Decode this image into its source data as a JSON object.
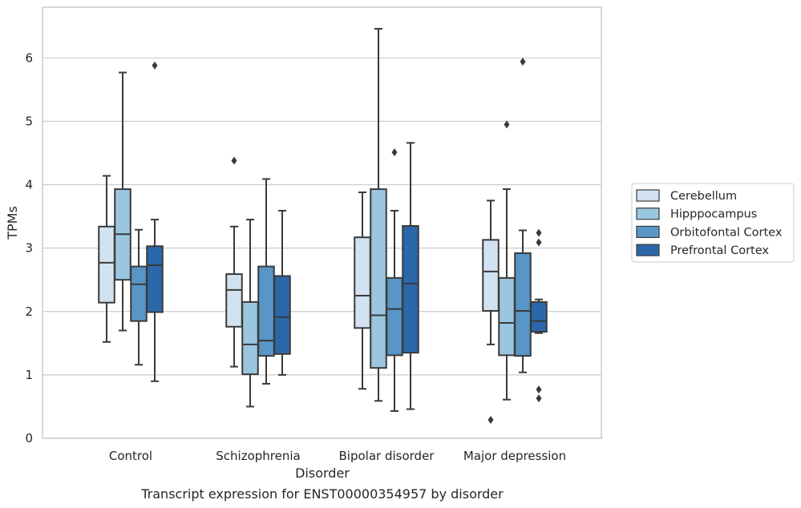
{
  "chart_data": {
    "type": "box",
    "title": "Transcript expression for ENST00000354957 by disorder",
    "xlabel": "Disorder",
    "ylabel": "TPMs",
    "ylim": [
      0,
      6.8
    ],
    "yticks": [
      0,
      1,
      2,
      3,
      4,
      5,
      6
    ],
    "grid": "horizontal",
    "legend_position": "outside-right",
    "categories": [
      "Control",
      "Schizophrenia",
      "Bipolar disorder",
      "Major depression"
    ],
    "series": [
      {
        "name": "Cerebellum",
        "color": "#d2e2f1",
        "boxes": [
          {
            "whisker_low": 1.52,
            "q1": 2.14,
            "median": 2.77,
            "q3": 3.34,
            "whisker_high": 4.14,
            "outliers": []
          },
          {
            "whisker_low": 1.13,
            "q1": 1.76,
            "median": 2.34,
            "q3": 2.59,
            "whisker_high": 3.34,
            "outliers": [
              4.38
            ]
          },
          {
            "whisker_low": 0.78,
            "q1": 1.74,
            "median": 2.25,
            "q3": 3.17,
            "whisker_high": 3.88,
            "outliers": []
          },
          {
            "whisker_low": 1.48,
            "q1": 2.01,
            "median": 2.63,
            "q3": 3.13,
            "whisker_high": 3.75,
            "outliers": [
              0.29
            ]
          }
        ]
      },
      {
        "name": "Hipppocampus",
        "color": "#9ac6e0",
        "boxes": [
          {
            "whisker_low": 1.7,
            "q1": 2.5,
            "median": 3.22,
            "q3": 3.93,
            "whisker_high": 5.77,
            "outliers": []
          },
          {
            "whisker_low": 0.5,
            "q1": 1.01,
            "median": 1.48,
            "q3": 2.15,
            "whisker_high": 3.45,
            "outliers": []
          },
          {
            "whisker_low": 0.59,
            "q1": 1.11,
            "median": 1.94,
            "q3": 3.93,
            "whisker_high": 6.46,
            "outliers": []
          },
          {
            "whisker_low": 0.61,
            "q1": 1.31,
            "median": 1.82,
            "q3": 2.53,
            "whisker_high": 3.93,
            "outliers": [
              4.95
            ]
          }
        ]
      },
      {
        "name": "Orbitofontal Cortex",
        "color": "#5796c7",
        "boxes": [
          {
            "whisker_low": 1.16,
            "q1": 1.85,
            "median": 2.43,
            "q3": 2.71,
            "whisker_high": 3.29,
            "outliers": []
          },
          {
            "whisker_low": 0.86,
            "q1": 1.3,
            "median": 1.54,
            "q3": 2.71,
            "whisker_high": 4.09,
            "outliers": []
          },
          {
            "whisker_low": 0.43,
            "q1": 1.31,
            "median": 2.04,
            "q3": 2.53,
            "whisker_high": 3.59,
            "outliers": [
              4.51
            ]
          },
          {
            "whisker_low": 1.04,
            "q1": 1.3,
            "median": 2.01,
            "q3": 2.92,
            "whisker_high": 3.28,
            "outliers": [
              5.94
            ]
          }
        ]
      },
      {
        "name": "Prefrontal Cortex",
        "color": "#2a68aa",
        "boxes": [
          {
            "whisker_low": 0.9,
            "q1": 1.99,
            "median": 2.73,
            "q3": 3.03,
            "whisker_high": 3.45,
            "outliers": [
              5.88
            ]
          },
          {
            "whisker_low": 1.0,
            "q1": 1.33,
            "median": 1.91,
            "q3": 2.56,
            "whisker_high": 3.59,
            "outliers": []
          },
          {
            "whisker_low": 0.46,
            "q1": 1.35,
            "median": 2.44,
            "q3": 3.35,
            "whisker_high": 4.66,
            "outliers": []
          },
          {
            "whisker_low": 1.66,
            "q1": 1.68,
            "median": 1.85,
            "q3": 2.15,
            "whisker_high": 2.19,
            "outliers": [
              3.24,
              3.09,
              0.77,
              0.63
            ]
          }
        ]
      }
    ]
  }
}
